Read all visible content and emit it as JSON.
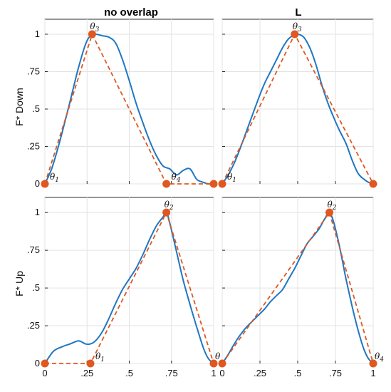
{
  "figure": {
    "col_titles": [
      "no overlap",
      "L"
    ],
    "row_labels": [
      "F* Down",
      "F* Up"
    ]
  },
  "colors": {
    "curve": "#1f77c4",
    "approx": "#e0571f"
  },
  "chart_data": [
    {
      "id": "down-no-overlap",
      "type": "line",
      "title": "no overlap",
      "ylabel": "F* Down",
      "xlim": [
        0,
        1
      ],
      "ylim": [
        0,
        1.1
      ],
      "xticks": [
        "0",
        ".25",
        ".5",
        ".75",
        "1"
      ],
      "yticks": [
        "0",
        ".25",
        ".5",
        ".75",
        "1"
      ],
      "grid": true,
      "series": [
        {
          "x": [
            0,
            0.04,
            0.08,
            0.12,
            0.16,
            0.2,
            0.24,
            0.27,
            0.3,
            0.34,
            0.38,
            0.42,
            0.46,
            0.5,
            0.54,
            0.58,
            0.62,
            0.66,
            0.7,
            0.74,
            0.78,
            0.82,
            0.86,
            0.9,
            0.94,
            0.97,
            1.0
          ],
          "y": [
            0,
            0.1,
            0.25,
            0.42,
            0.6,
            0.78,
            0.93,
            0.99,
            1.0,
            0.99,
            0.98,
            0.94,
            0.83,
            0.69,
            0.54,
            0.41,
            0.29,
            0.19,
            0.12,
            0.1,
            0.06,
            0.09,
            0.1,
            0.03,
            0.01,
            0.0,
            0.0
          ]
        },
        {
          "x": [
            0,
            0.28,
            0.72,
            1.0
          ],
          "y": [
            0,
            1.0,
            0,
            0
          ]
        }
      ],
      "points": [
        {
          "x": 0.0,
          "y": 0.0,
          "label": "θ",
          "sub": "1"
        },
        {
          "x": 0.28,
          "y": 1.0,
          "label": "θ",
          "sub": "3"
        },
        {
          "x": 0.72,
          "y": 0.0,
          "label": "θ",
          "sub": "4"
        },
        {
          "x": 1.0,
          "y": 0.0
        }
      ]
    },
    {
      "id": "down-l",
      "type": "line",
      "title": "L",
      "xlim": [
        0,
        1
      ],
      "ylim": [
        0,
        1.1
      ],
      "xticks": [
        "0",
        ".25",
        ".5",
        ".75",
        "1"
      ],
      "yticks": [
        "0",
        ".25",
        ".5",
        ".75",
        "1"
      ],
      "grid": true,
      "series": [
        {
          "x": [
            0,
            0.04,
            0.08,
            0.12,
            0.16,
            0.2,
            0.24,
            0.28,
            0.32,
            0.36,
            0.4,
            0.44,
            0.47,
            0.5,
            0.54,
            0.58,
            0.62,
            0.66,
            0.7,
            0.74,
            0.78,
            0.82,
            0.86,
            0.9,
            0.94,
            0.97,
            1.0
          ],
          "y": [
            0,
            0.06,
            0.14,
            0.24,
            0.35,
            0.46,
            0.57,
            0.67,
            0.75,
            0.83,
            0.91,
            0.97,
            0.99,
            1.0,
            0.98,
            0.91,
            0.8,
            0.66,
            0.54,
            0.44,
            0.35,
            0.27,
            0.16,
            0.07,
            0.03,
            0.01,
            0.0
          ]
        },
        {
          "x": [
            0,
            0.48,
            1.0
          ],
          "y": [
            0,
            1.0,
            0
          ]
        }
      ],
      "points": [
        {
          "x": 0.0,
          "y": 0.0,
          "label": "θ",
          "sub": "1"
        },
        {
          "x": 0.48,
          "y": 1.0,
          "label": "θ",
          "sub": "3"
        },
        {
          "x": 1.0,
          "y": 0.0
        }
      ]
    },
    {
      "id": "up-no-overlap",
      "type": "line",
      "ylabel": "F* Up",
      "xlim": [
        0,
        1
      ],
      "ylim": [
        0,
        1.1
      ],
      "xticks": [
        "0",
        ".25",
        ".5",
        ".75",
        "1"
      ],
      "yticks": [
        "0",
        ".25",
        ".5",
        ".75",
        "1"
      ],
      "grid": true,
      "series": [
        {
          "x": [
            0,
            0.05,
            0.1,
            0.15,
            0.2,
            0.24,
            0.27,
            0.3,
            0.34,
            0.38,
            0.42,
            0.46,
            0.5,
            0.54,
            0.58,
            0.62,
            0.66,
            0.7,
            0.72,
            0.74,
            0.78,
            0.82,
            0.86,
            0.9,
            0.94,
            0.97,
            1.0
          ],
          "y": [
            0,
            0.08,
            0.11,
            0.13,
            0.15,
            0.13,
            0.13,
            0.15,
            0.21,
            0.3,
            0.4,
            0.49,
            0.56,
            0.63,
            0.72,
            0.82,
            0.91,
            0.97,
            1.0,
            0.93,
            0.74,
            0.55,
            0.39,
            0.24,
            0.1,
            0.03,
            0.0
          ]
        },
        {
          "x": [
            0,
            0.27,
            0.72,
            1.0
          ],
          "y": [
            0,
            0,
            1.0,
            0
          ]
        }
      ],
      "points": [
        {
          "x": 0.0,
          "y": 0.0
        },
        {
          "x": 0.27,
          "y": 0.0,
          "label": "θ",
          "sub": "1"
        },
        {
          "x": 0.72,
          "y": 1.0,
          "label": "θ",
          "sub": "2"
        },
        {
          "x": 1.0,
          "y": 0.0,
          "label": "θ",
          "sub": ""
        }
      ]
    },
    {
      "id": "up-l",
      "type": "line",
      "xlim": [
        0,
        1
      ],
      "ylim": [
        0,
        1.1
      ],
      "xticks": [
        "0",
        ".25",
        ".5",
        ".75",
        "1"
      ],
      "yticks": [
        "0",
        ".25",
        ".5",
        ".75",
        "1"
      ],
      "grid": true,
      "series": [
        {
          "x": [
            0,
            0.04,
            0.08,
            0.12,
            0.16,
            0.2,
            0.24,
            0.28,
            0.32,
            0.36,
            0.4,
            0.44,
            0.48,
            0.52,
            0.56,
            0.6,
            0.64,
            0.68,
            0.71,
            0.74,
            0.78,
            0.82,
            0.86,
            0.9,
            0.94,
            0.97,
            1.0
          ],
          "y": [
            0,
            0.06,
            0.13,
            0.19,
            0.24,
            0.28,
            0.32,
            0.36,
            0.41,
            0.45,
            0.49,
            0.56,
            0.63,
            0.71,
            0.79,
            0.84,
            0.89,
            0.96,
            1.0,
            0.93,
            0.76,
            0.56,
            0.38,
            0.22,
            0.09,
            0.03,
            0.0
          ]
        },
        {
          "x": [
            0,
            0.71,
            1.0
          ],
          "y": [
            0,
            1.0,
            0
          ]
        }
      ],
      "points": [
        {
          "x": 0.0,
          "y": 0.0
        },
        {
          "x": 0.71,
          "y": 1.0,
          "label": "θ",
          "sub": "2"
        },
        {
          "x": 1.0,
          "y": 0.0,
          "label": "θ",
          "sub": "4"
        }
      ]
    }
  ]
}
